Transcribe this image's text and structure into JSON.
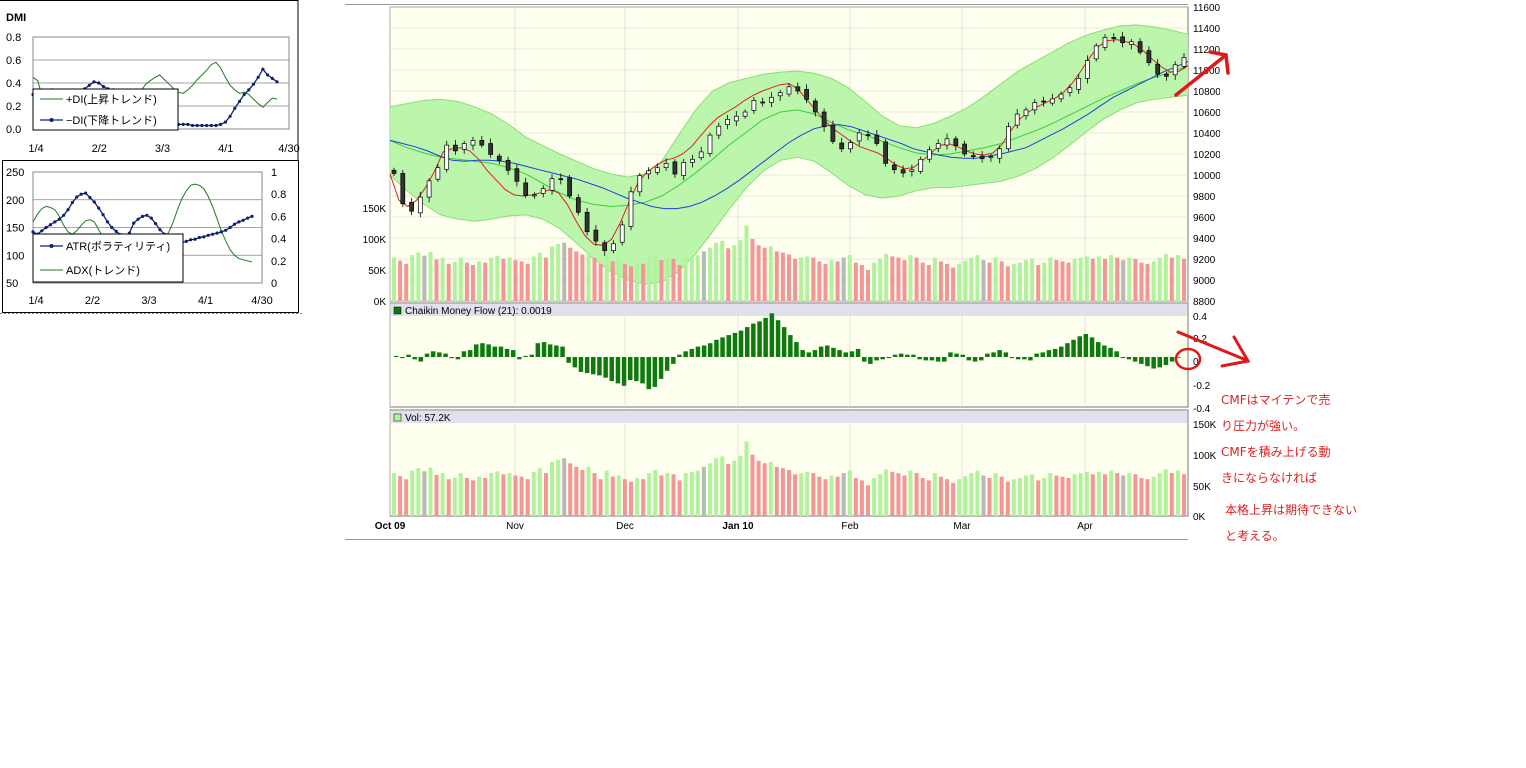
{
  "dmi_panel": {
    "title": "DMI",
    "y_ticks": [
      "0.8",
      "0.6",
      "0.4",
      "0.2",
      "0.0"
    ],
    "x_ticks": [
      "1/4",
      "2/2",
      "3/3",
      "4/1",
      "4/30"
    ],
    "legend": [
      "+DI(上昇トレンド)",
      "−DI(下降トレンド)"
    ],
    "colors": {
      "plus_di": "#1e7a1e",
      "minus_di": "#10206a"
    }
  },
  "atr_panel": {
    "y_left_ticks": [
      "250",
      "200",
      "150",
      "100",
      "50"
    ],
    "y_right_ticks": [
      "1",
      "0.8",
      "0.6",
      "0.4",
      "0.2",
      "0"
    ],
    "x_ticks": [
      "1/4",
      "2/2",
      "3/3",
      "4/1",
      "4/30"
    ],
    "legend": [
      "ATR(ボラティリティ)",
      "ADX(トレンド)"
    ]
  },
  "main_chart": {
    "price_ticks": [
      "11600",
      "11400",
      "11200",
      "11000",
      "10800",
      "10600",
      "10400",
      "10200",
      "10000",
      "9800",
      "9600",
      "9400",
      "9200",
      "9000",
      "8800"
    ],
    "volume_ticks": [
      "150K",
      "100K",
      "50K",
      "0K"
    ],
    "x_labels": [
      "Oct 09",
      "Nov",
      "Dec",
      "Jan 10",
      "Feb",
      "Mar",
      "Apr"
    ],
    "colors": {
      "band_fill": "#b4f5a4",
      "bollinger_line": "#8cdc78",
      "ema_short": "#e02020",
      "ema_long": "#2040d8",
      "up_volume": "#b0f39c",
      "down_volume": "#f59696",
      "neutral_volume": "#b8b8b8"
    }
  },
  "cmf_panel": {
    "label": "Chaikin Money Flow (21): 0.0019",
    "y_ticks": [
      "0.4",
      "0.2",
      "0",
      "-0.2",
      "-0.4"
    ],
    "bar_color": "#0e7a0e"
  },
  "vol_panel": {
    "label": "Vol: 57.2K",
    "y_ticks": [
      "150K",
      "100K",
      "50K",
      "0K"
    ]
  },
  "annotations": {
    "line1": "CMFはマイテンで売",
    "line2": "り圧力が強い。",
    "line3": "CMFを積み上げる動",
    "line4": "きにならなければ",
    "line5": "本格上昇は期待できない",
    "line6": "と考える。"
  },
  "chart_data": [
    {
      "type": "line",
      "title": "DMI",
      "x_ticks": [
        "1/4",
        "2/2",
        "3/3",
        "4/1",
        "4/30"
      ],
      "ylim": [
        0,
        0.8
      ],
      "series": [
        {
          "name": "+DI(上昇トレンド)",
          "values": [
            0.45,
            0.42,
            0.28,
            0.25,
            0.24,
            0.27,
            0.3,
            0.29,
            0.25,
            0.21,
            0.2,
            0.24,
            0.28,
            0.31,
            0.3,
            0.27,
            0.24,
            0.22,
            0.24,
            0.26,
            0.27,
            0.25,
            0.28,
            0.33,
            0.39,
            0.42,
            0.45,
            0.47,
            0.43,
            0.39,
            0.35,
            0.32,
            0.31,
            0.34,
            0.38,
            0.43,
            0.47,
            0.51,
            0.56,
            0.58,
            0.53,
            0.45,
            0.38,
            0.34,
            0.31,
            0.32,
            0.3,
            0.26,
            0.22,
            0.19,
            0.23,
            0.27,
            0.26
          ]
        },
        {
          "name": "−DI(下降トレンド)",
          "values": [
            0.3,
            0.3,
            0.31,
            0.32,
            0.34,
            0.33,
            0.31,
            0.3,
            0.29,
            0.28,
            0.31,
            0.35,
            0.38,
            0.41,
            0.4,
            0.37,
            0.35,
            0.34,
            0.31,
            0.28,
            0.26,
            0.22,
            0.18,
            0.14,
            0.1,
            0.06,
            0.05,
            0.04,
            0.04,
            0.04,
            0.04,
            0.04,
            0.04,
            0.04,
            0.03,
            0.03,
            0.03,
            0.03,
            0.03,
            0.03,
            0.04,
            0.06,
            0.11,
            0.18,
            0.24,
            0.3,
            0.34,
            0.39,
            0.45,
            0.52,
            0.47,
            0.44,
            0.41
          ]
        }
      ]
    },
    {
      "type": "line",
      "title": "",
      "x_ticks": [
        "1/4",
        "2/2",
        "3/3",
        "4/1",
        "4/30"
      ],
      "ylim_left": [
        50,
        250
      ],
      "ylim_right": [
        0,
        1
      ],
      "series": [
        {
          "name": "ATR(ボラティリティ)",
          "axis": "left",
          "values": [
            142,
            138,
            144,
            150,
            155,
            160,
            165,
            172,
            182,
            195,
            205,
            210,
            212,
            204,
            196,
            185,
            173,
            160,
            150,
            143,
            137,
            133,
            140,
            158,
            165,
            170,
            172,
            167,
            157,
            146,
            138,
            132,
            126,
            125,
            123,
            125,
            128,
            129,
            132,
            133,
            136,
            138,
            140,
            142,
            145,
            150,
            156,
            160,
            163,
            167,
            170
          ]
        },
        {
          "name": "ADX(トレンド)",
          "axis": "right",
          "values": [
            0.55,
            0.62,
            0.67,
            0.69,
            0.68,
            0.66,
            0.6,
            0.52,
            0.46,
            0.44,
            0.47,
            0.52,
            0.56,
            0.57,
            0.55,
            0.48,
            0.41,
            0.36,
            0.34,
            0.38,
            0.42,
            0.44,
            0.42,
            0.38,
            0.34,
            0.31,
            0.29,
            0.28,
            0.31,
            0.35,
            0.4,
            0.46,
            0.55,
            0.66,
            0.76,
            0.83,
            0.88,
            0.89,
            0.88,
            0.85,
            0.78,
            0.69,
            0.58,
            0.47,
            0.38,
            0.3,
            0.25,
            0.22,
            0.21,
            0.2,
            0.19
          ]
        }
      ]
    },
    {
      "type": "line",
      "title": "",
      "x_labels": [
        "Oct 09",
        "Nov",
        "Dec",
        "Jan 10",
        "Feb",
        "Mar",
        "Apr"
      ],
      "ylim": [
        8800,
        11600
      ],
      "candles_close": [
        10015,
        9725,
        9655,
        9790,
        9945,
        10070,
        10285,
        10230,
        10300,
        10330,
        10285,
        10195,
        10140,
        10045,
        9940,
        9805,
        9810,
        9870,
        9965,
        9960,
        9800,
        9645,
        9460,
        9370,
        9280,
        9345,
        9525,
        9840,
        9995,
        10040,
        10070,
        10110,
        10010,
        10120,
        10150,
        10220,
        10380,
        10465,
        10530,
        10560,
        10600,
        10710,
        10690,
        10740,
        10785,
        10840,
        10800,
        10720,
        10600,
        10460,
        10320,
        10250,
        10310,
        10400,
        10380,
        10300,
        10110,
        10050,
        10020,
        10050,
        10150,
        10240,
        10300,
        10345,
        10280,
        10200,
        10180,
        10155,
        10175,
        10250,
        10460,
        10580,
        10620,
        10690,
        10700,
        10725,
        10770,
        10830,
        10920,
        11090,
        11230,
        11310,
        11300,
        11260,
        11270,
        11170,
        11070,
        10960,
        10940,
        11050,
        11120
      ],
      "bollinger_upper": [
        10650,
        10680,
        10710,
        10720,
        10700,
        10650,
        10580,
        10480,
        10360,
        10280,
        10200,
        10130,
        10060,
        10010,
        9980,
        10010,
        10130,
        10380,
        10620,
        10800,
        10880,
        10920,
        10960,
        10980,
        10990,
        10970,
        10920,
        10830,
        10700,
        10560,
        10470,
        10450,
        10490,
        10560,
        10640,
        10750,
        10870,
        10990,
        11080,
        11170,
        11260,
        11330,
        11380,
        11420,
        11430,
        11410,
        11380,
        11340
      ],
      "bollinger_lower": [
        10000,
        9850,
        9720,
        9620,
        9580,
        9560,
        9580,
        9610,
        9620,
        9580,
        9490,
        9350,
        9200,
        9080,
        9000,
        8960,
        8980,
        9080,
        9250,
        9460,
        9680,
        9880,
        10040,
        10140,
        10170,
        10130,
        10020,
        9900,
        9810,
        9780,
        9800,
        9850,
        9880,
        9880,
        9900,
        9920,
        9940,
        9990,
        10060,
        10160,
        10280,
        10410,
        10530,
        10620,
        10690,
        10720,
        10740,
        10760
      ],
      "sma_mid": [
        10330,
        10260,
        10210,
        10170,
        10150,
        10130,
        10110,
        10070,
        10010,
        9920,
        9830,
        9760,
        9720,
        9700,
        9710,
        9740,
        9800,
        9900,
        10020,
        10150,
        10290,
        10410,
        10530,
        10600,
        10620,
        10580,
        10500,
        10430,
        10380,
        10320,
        10260,
        10210,
        10190,
        10200,
        10230,
        10260,
        10300,
        10360,
        10420,
        10490,
        10570,
        10650,
        10730,
        10800,
        10870,
        10930,
        10980,
        11040
      ],
      "ema_short": [
        10010,
        9760,
        9700,
        9760,
        9880,
        10030,
        10220,
        10250,
        10260,
        10230,
        10150,
        10040,
        9950,
        9860,
        9810,
        9800,
        9810,
        9830,
        9860,
        9830,
        9720,
        9560,
        9420,
        9340,
        9330,
        9390,
        9550,
        9750,
        9930,
        10030,
        10090,
        10140,
        10160,
        10200,
        10270,
        10370,
        10470,
        10550,
        10600,
        10650,
        10710,
        10760,
        10800,
        10830,
        10860,
        10870,
        10820,
        10720,
        10620,
        10520,
        10440,
        10380,
        10320,
        10270,
        10240,
        10210,
        10160,
        10100,
        10060,
        10070,
        10130,
        10210,
        10280,
        10300,
        10270,
        10230,
        10200,
        10190,
        10210,
        10290,
        10420,
        10530,
        10600,
        10650,
        10690,
        10730,
        10790,
        10880,
        11000,
        11130,
        11230,
        11280,
        11290,
        11270,
        11240,
        11180,
        11100,
        11030,
        10980,
        10990,
        11040
      ],
      "ema_long": [
        10330,
        10300,
        10270,
        10230,
        10180,
        10140,
        10130,
        10140,
        10140,
        10130,
        10110,
        10080,
        10050,
        10020,
        9990,
        9960,
        9920,
        9880,
        9830,
        9780,
        9740,
        9700,
        9680,
        9680,
        9700,
        9740,
        9800,
        9870,
        9950,
        10040,
        10130,
        10220,
        10310,
        10380,
        10440,
        10470,
        10480,
        10460,
        10420,
        10380,
        10340,
        10300,
        10250,
        10220,
        10190,
        10170,
        10160,
        10160,
        10180,
        10200,
        10230,
        10260,
        10320,
        10380,
        10440,
        10510,
        10580,
        10660,
        10740,
        10800,
        10860,
        10920,
        10980,
        11030,
        11080
      ],
      "volume_k": [
        70,
        65,
        60,
        74,
        78,
        73,
        79,
        67,
        70,
        60,
        63,
        70,
        62,
        58,
        64,
        62,
        70,
        73,
        68,
        70,
        66,
        64,
        60,
        72,
        78,
        70,
        88,
        92,
        94,
        86,
        80,
        75,
        80,
        70,
        60,
        74,
        64,
        66,
        60,
        56,
        62,
        60,
        70,
        75,
        66,
        70,
        68,
        58,
        70,
        72,
        74,
        80,
        86,
        94,
        97,
        85,
        90,
        98,
        122,
        100,
        90,
        86,
        88,
        80,
        78,
        75,
        68,
        70,
        72,
        70,
        64,
        60,
        66,
        64,
        70,
        74,
        62,
        58,
        50,
        62,
        68,
        76,
        72,
        70,
        66,
        74,
        70,
        62,
        58,
        70,
        64,
        60,
        54,
        60,
        65,
        70,
        74,
        66,
        62,
        70,
        64,
        56,
        60,
        62,
        66,
        68,
        58,
        62,
        70,
        66,
        64,
        62,
        68,
        70,
        72,
        68,
        72,
        68,
        74,
        70,
        66,
        70,
        68,
        62,
        60,
        64,
        70,
        76,
        70,
        74,
        68
      ],
      "volume_ticks_k": [
        150,
        100,
        50,
        0
      ]
    },
    {
      "type": "bar",
      "title": "Chaikin Money Flow (21): 0.0019",
      "ylim": [
        -0.4,
        0.4
      ],
      "values": [
        0.01,
        -0.01,
        0.02,
        -0.02,
        -0.04,
        0.03,
        0.05,
        0.04,
        0.03,
        -0.01,
        -0.02,
        0.05,
        0.06,
        0.11,
        0.12,
        0.11,
        0.09,
        0.09,
        0.07,
        0.06,
        -0.02,
        0.01,
        0.02,
        0.12,
        0.13,
        0.11,
        0.1,
        0.09,
        -0.05,
        -0.09,
        -0.13,
        -0.14,
        -0.15,
        -0.16,
        -0.18,
        -0.21,
        -0.23,
        -0.25,
        -0.2,
        -0.21,
        -0.23,
        -0.28,
        -0.26,
        -0.19,
        -0.12,
        -0.06,
        0.02,
        0.05,
        0.07,
        0.09,
        0.1,
        0.12,
        0.15,
        0.17,
        0.19,
        0.21,
        0.23,
        0.26,
        0.29,
        0.31,
        0.34,
        0.38,
        0.32,
        0.26,
        0.19,
        0.13,
        0.06,
        0.04,
        0.06,
        0.09,
        0.1,
        0.08,
        0.06,
        0.04,
        0.05,
        0.07,
        -0.04,
        -0.06,
        -0.03,
        -0.02,
        -0.01,
        0.02,
        0.03,
        0.02,
        0.02,
        -0.02,
        -0.03,
        -0.03,
        -0.04,
        -0.04,
        0.04,
        0.03,
        0.02,
        -0.03,
        -0.04,
        -0.03,
        0.03,
        0.04,
        0.06,
        0.04,
        -0.01,
        -0.02,
        -0.02,
        -0.03,
        0.03,
        0.04,
        0.06,
        0.07,
        0.09,
        0.12,
        0.15,
        0.18,
        0.2,
        0.17,
        0.13,
        0.1,
        0.08,
        0.05,
        -0.01,
        -0.02,
        -0.04,
        -0.06,
        -0.08,
        -0.1,
        -0.09,
        -0.07,
        -0.04,
        0.0
      ]
    },
    {
      "type": "bar",
      "title": "Vol: 57.2K",
      "ylim": [
        0,
        150
      ],
      "volume_ticks_k": [
        150,
        100,
        50,
        0
      ]
    }
  ]
}
